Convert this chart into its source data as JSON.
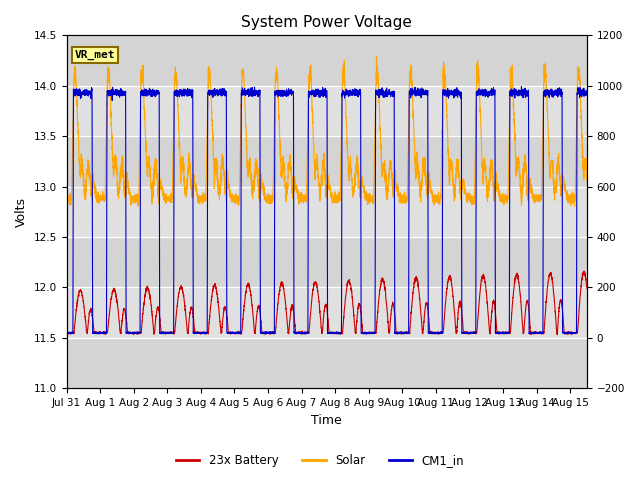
{
  "title": "System Power Voltage",
  "xlabel": "Time",
  "ylabel_left": "Volts",
  "ylim_left": [
    11.0,
    14.5
  ],
  "ylim_right": [
    -200,
    1200
  ],
  "x_tick_labels": [
    "Jul 31",
    "Aug 1",
    "Aug 2",
    "Aug 3",
    "Aug 4",
    "Aug 5",
    "Aug 6",
    "Aug 7",
    "Aug 8",
    "Aug 9",
    "Aug 10",
    "Aug 11",
    "Aug 12",
    "Aug 13",
    "Aug 14",
    "Aug 15"
  ],
  "yticks_left": [
    11.0,
    11.5,
    12.0,
    12.5,
    13.0,
    13.5,
    14.0,
    14.5
  ],
  "yticks_right": [
    -200,
    0,
    200,
    400,
    600,
    800,
    1000,
    1200
  ],
  "annotation_text": "VR_met",
  "band_colors_odd": "#d4d4d4",
  "band_colors_even": "#e0e0e0",
  "line_colors": {
    "battery": "#cc0000",
    "solar": "#ffa500",
    "cm1": "#0000cc"
  },
  "legend_labels": [
    "23x Battery",
    "Solar",
    "CM1_in"
  ],
  "total_days": 15.5,
  "n_points": 4000
}
